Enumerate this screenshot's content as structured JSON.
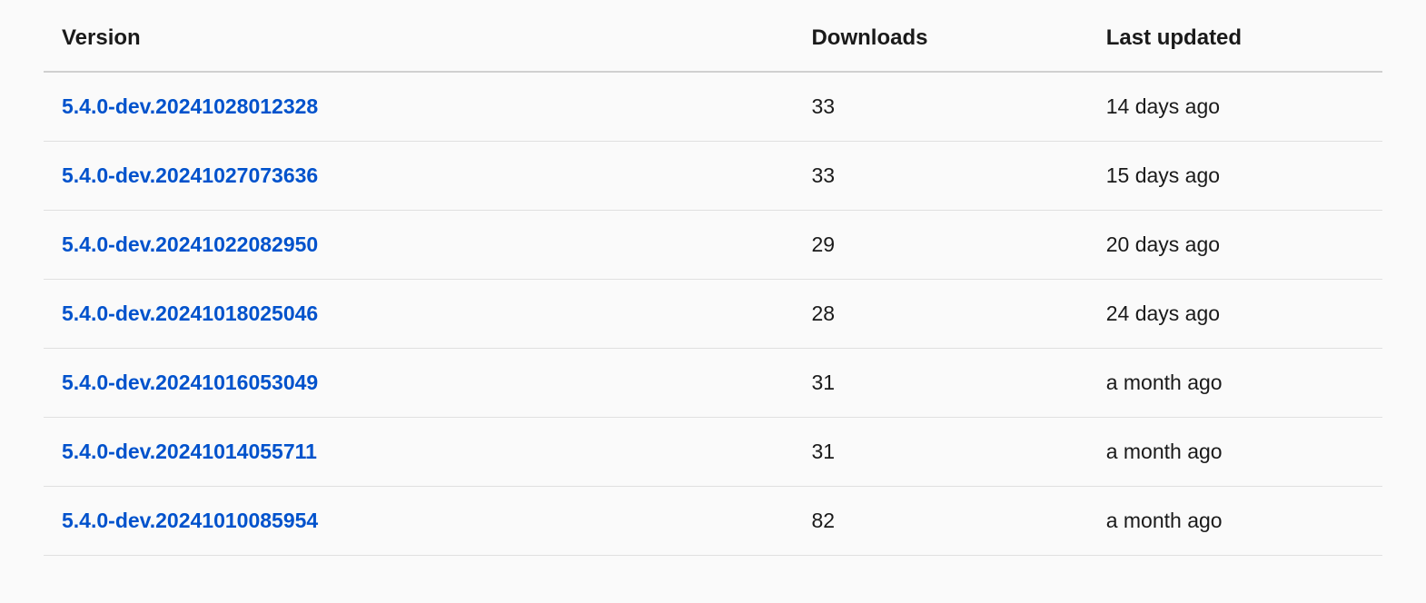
{
  "table": {
    "columns": {
      "version": "Version",
      "downloads": "Downloads",
      "last_updated": "Last updated"
    },
    "rows": [
      {
        "version": "5.4.0-dev.20241028012328",
        "downloads": "33",
        "last_updated": "14 days ago"
      },
      {
        "version": "5.4.0-dev.20241027073636",
        "downloads": "33",
        "last_updated": "15 days ago"
      },
      {
        "version": "5.4.0-dev.20241022082950",
        "downloads": "29",
        "last_updated": "20 days ago"
      },
      {
        "version": "5.4.0-dev.20241018025046",
        "downloads": "28",
        "last_updated": "24 days ago"
      },
      {
        "version": "5.4.0-dev.20241016053049",
        "downloads": "31",
        "last_updated": "a month ago"
      },
      {
        "version": "5.4.0-dev.20241014055711",
        "downloads": "31",
        "last_updated": "a month ago"
      },
      {
        "version": "5.4.0-dev.20241010085954",
        "downloads": "82",
        "last_updated": "a month ago"
      }
    ]
  },
  "styling": {
    "background_color": "#fafafa",
    "header_text_color": "#1a1a1a",
    "body_text_color": "#1a1a1a",
    "link_color": "#0052cc",
    "header_border_color": "#d0d0d0",
    "row_border_color": "#e0e0e0",
    "header_font_size": 24,
    "body_font_size": 23,
    "header_font_weight": 700,
    "version_font_weight": 700
  }
}
